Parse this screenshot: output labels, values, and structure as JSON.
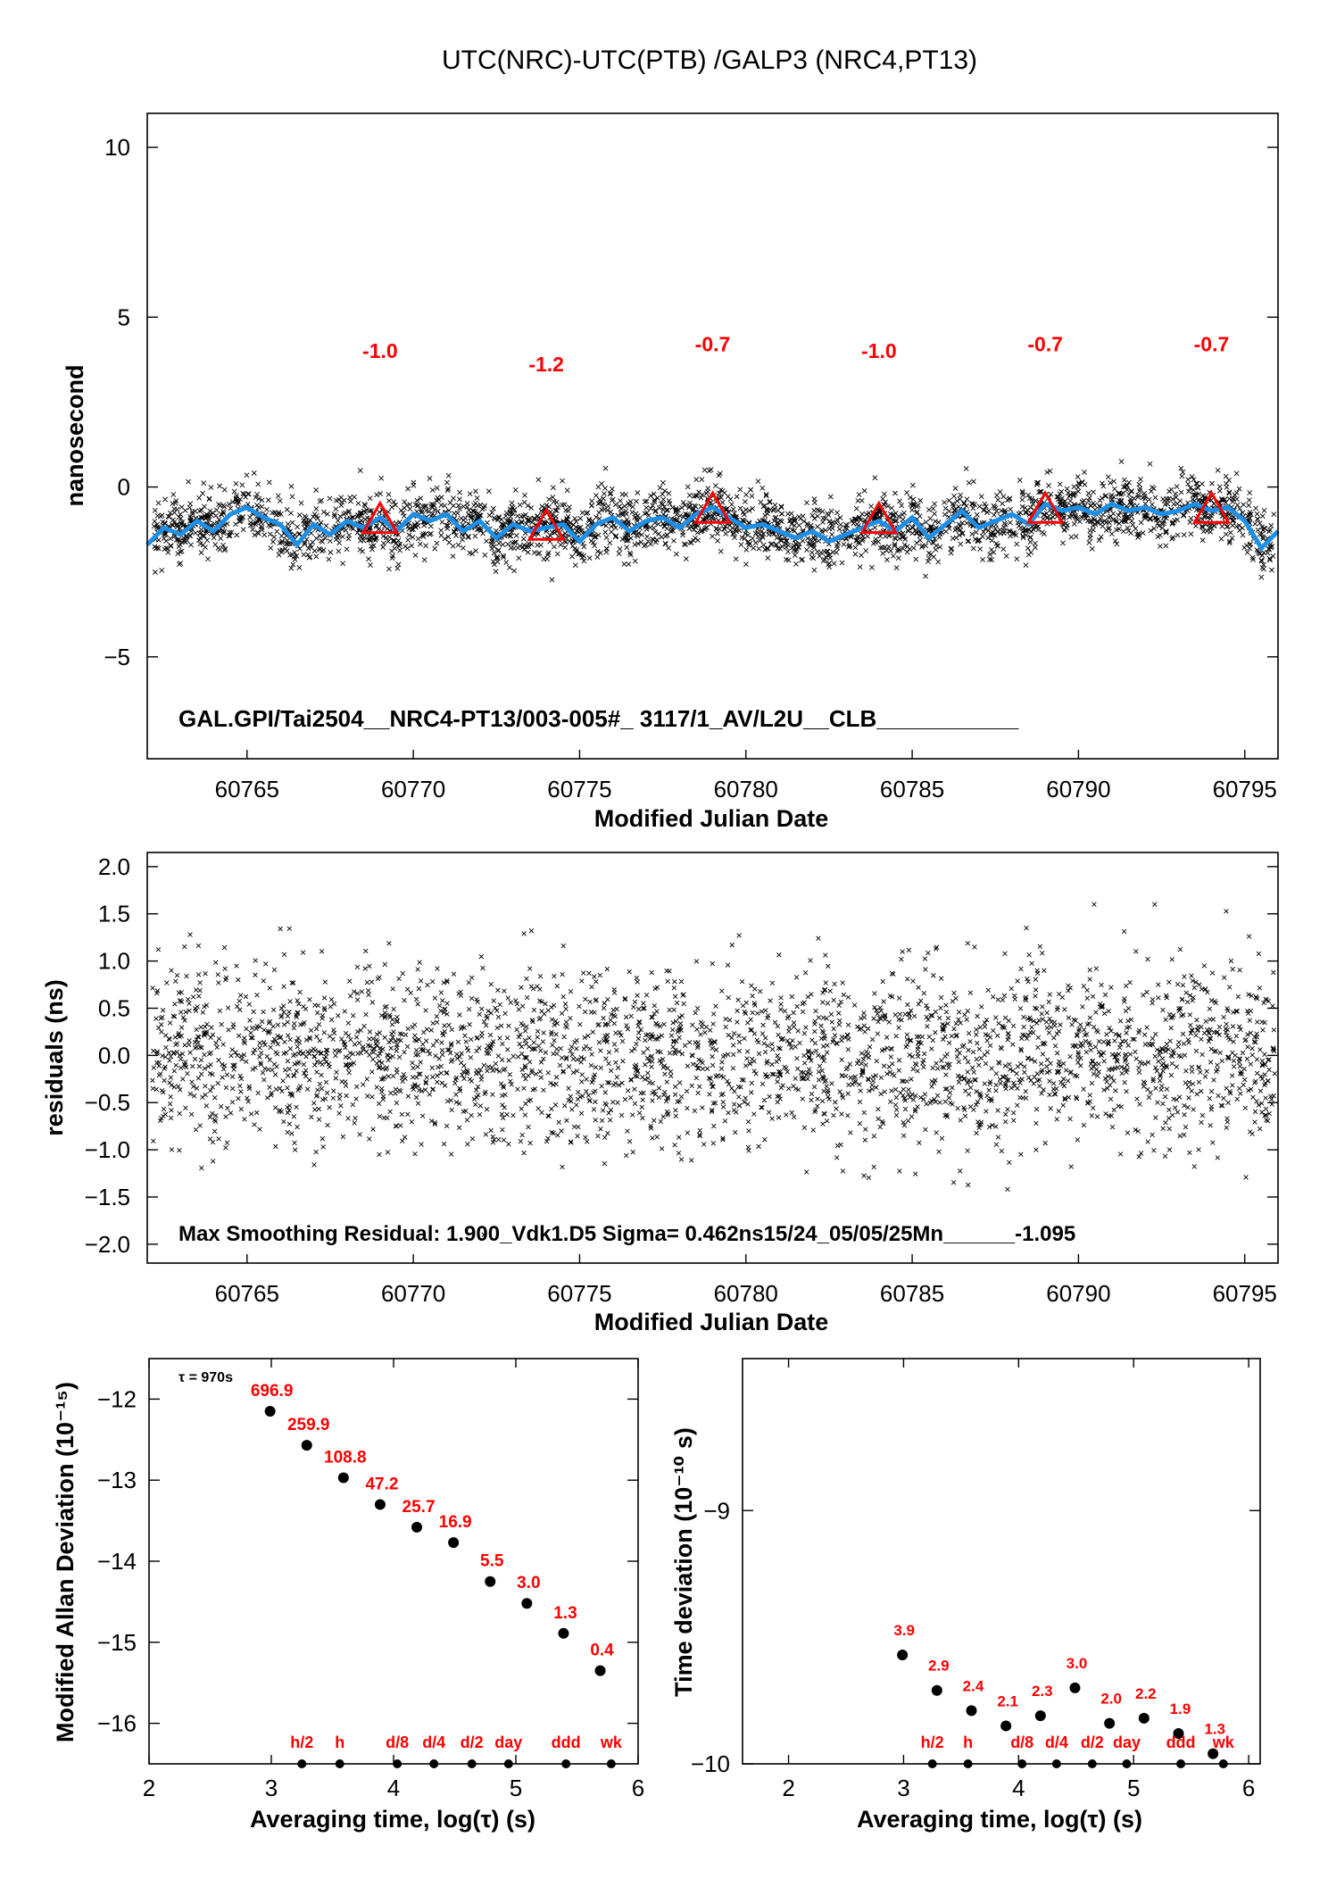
{
  "colors": {
    "scatter": "#000000",
    "smooth": "#1e8fe6",
    "marker": "#ff0000",
    "label": "#ff0000"
  },
  "title": "UTC(NRC)-UTC(PTB)  /GALP3  (NRC4,PT13)",
  "chart_data": [
    {
      "type": "scatter",
      "id": "time-series",
      "xlabel": "Modified Julian Date",
      "ylabel": "nanosecond",
      "xlim": [
        60762.0,
        60796.0
      ],
      "ylim": [
        -8.0,
        11.0
      ],
      "xticks": [
        60765,
        60770,
        60775,
        60780,
        60785,
        60790,
        60795
      ],
      "yticks": [
        10,
        5,
        0,
        -5
      ],
      "ytick_labels": [
        "10",
        "5",
        "0",
        "−5"
      ],
      "annotation": "GAL.GPI/Tai2504__NRC4-PT13/003-005#_  3117/1_AV/L2U__CLB___________",
      "smoothed_curve": {
        "x": [
          60762.0,
          60762.5,
          60763.0,
          60763.5,
          60764.0,
          60764.5,
          60765.0,
          60765.5,
          60766.0,
          60766.5,
          60767.0,
          60767.5,
          60768.0,
          60768.5,
          60769.0,
          60769.5,
          60770.0,
          60770.5,
          60771.0,
          60771.5,
          60772.0,
          60772.5,
          60773.0,
          60773.5,
          60774.0,
          60774.5,
          60775.0,
          60775.5,
          60776.0,
          60776.5,
          60777.0,
          60777.5,
          60778.0,
          60778.5,
          60779.0,
          60779.5,
          60780.0,
          60780.5,
          60781.0,
          60781.5,
          60782.0,
          60782.5,
          60783.0,
          60783.5,
          60784.0,
          60784.5,
          60785.0,
          60785.5,
          60786.0,
          60786.5,
          60787.0,
          60787.5,
          60788.0,
          60788.5,
          60789.0,
          60789.5,
          60790.0,
          60790.5,
          60791.0,
          60791.5,
          60792.0,
          60792.5,
          60793.0,
          60793.5,
          60794.0,
          60794.5,
          60795.0,
          60795.5,
          60796.0
        ],
        "y": [
          -1.7,
          -1.2,
          -1.4,
          -1.0,
          -1.3,
          -0.8,
          -0.6,
          -0.9,
          -1.1,
          -1.7,
          -1.1,
          -1.4,
          -1.0,
          -1.2,
          -0.9,
          -1.3,
          -0.8,
          -1.0,
          -0.8,
          -1.3,
          -1.0,
          -1.5,
          -1.1,
          -1.3,
          -1.2,
          -1.1,
          -1.6,
          -1.1,
          -0.9,
          -1.3,
          -1.0,
          -0.9,
          -1.2,
          -0.8,
          -0.6,
          -0.9,
          -1.2,
          -1.1,
          -1.3,
          -1.5,
          -1.3,
          -1.6,
          -1.4,
          -1.2,
          -1.0,
          -1.3,
          -0.9,
          -1.5,
          -1.1,
          -0.7,
          -1.2,
          -1.0,
          -0.8,
          -1.1,
          -0.5,
          -0.7,
          -0.6,
          -0.8,
          -0.5,
          -0.7,
          -0.6,
          -0.8,
          -0.7,
          -0.5,
          -0.7,
          -0.6,
          -1.0,
          -1.8,
          -1.3
        ]
      },
      "markers": [
        {
          "x": 60769.0,
          "y": -1.0,
          "label": "-1.0"
        },
        {
          "x": 60774.0,
          "y": -1.2,
          "label": "-1.2"
        },
        {
          "x": 60779.0,
          "y": -0.7,
          "label": "-0.7"
        },
        {
          "x": 60784.0,
          "y": -1.0,
          "label": "-1.0"
        },
        {
          "x": 60789.0,
          "y": -0.7,
          "label": "-0.7"
        },
        {
          "x": 60794.0,
          "y": -0.7,
          "label": "-0.7"
        }
      ],
      "marker_label_y": [
        3.8,
        3.4,
        4.0,
        3.8,
        4.0,
        4.0
      ],
      "scatter_noise_sigma": 0.46,
      "scatter_count": 2900
    },
    {
      "type": "scatter",
      "id": "residuals",
      "xlabel": "Modified Julian Date",
      "ylabel": "residuals (ns)",
      "xlim": [
        60762.0,
        60796.0
      ],
      "ylim": [
        -2.2,
        2.15
      ],
      "xticks": [
        60765,
        60770,
        60775,
        60780,
        60785,
        60790,
        60795
      ],
      "yticks": [
        2.0,
        1.5,
        1.0,
        0.5,
        0.0,
        -0.5,
        -1.0,
        -1.5,
        -2.0
      ],
      "ytick_labels": [
        "2.0",
        "1.5",
        "1.0",
        "0.5",
        "0.0",
        "−0.5",
        "−1.0",
        "−1.5",
        "−2.0"
      ],
      "annotation": "Max Smoothing Residual: 1.900_Vdk1.D5  Sigma= 0.462ns15/24_05/05/25Mn______-1.095",
      "sigma": 0.462,
      "max_residual": 1.9,
      "scatter_count": 2900
    },
    {
      "type": "scatter",
      "id": "modified-allan-deviation",
      "xlabel": "Averaging time, log(τ) (s)",
      "ylabel": "Modified Allan Deviation (10⁻¹⁵)",
      "xlim": [
        2,
        6
      ],
      "ylim": [
        -16.5,
        -11.5
      ],
      "xticks": [
        2,
        3,
        4,
        5,
        6
      ],
      "yticks": [
        -12,
        -13,
        -14,
        -15,
        -16
      ],
      "ytick_labels": [
        "−12",
        "−13",
        "−14",
        "−15",
        "−16"
      ],
      "tau_note": "τ = 970s",
      "points": {
        "x": [
          2.99,
          3.29,
          3.59,
          3.89,
          4.19,
          4.49,
          4.79,
          5.09,
          5.39,
          5.69
        ],
        "y": [
          -12.15,
          -12.57,
          -12.97,
          -13.3,
          -13.58,
          -13.77,
          -14.25,
          -14.52,
          -14.89,
          -15.35
        ],
        "labels": [
          "696.9",
          "259.9",
          "108.8",
          "47.2",
          "25.7",
          "16.9",
          "5.5",
          "3.0",
          "1.3",
          "0.4"
        ]
      },
      "time_marks": {
        "x": [
          3.25,
          3.56,
          4.03,
          4.33,
          4.64,
          4.94,
          5.41,
          5.78
        ],
        "labels": [
          "h/2",
          "h",
          "d/8",
          "d/4",
          "d/2",
          "day",
          "ddd",
          "wk"
        ]
      }
    },
    {
      "type": "scatter",
      "id": "time-deviation",
      "xlabel": "Averaging time, log(τ) (s)",
      "ylabel": "Time deviation (10⁻¹⁰ s)",
      "xlim": [
        1.6,
        6.1
      ],
      "ylim": [
        -10.0,
        -8.4
      ],
      "xticks": [
        2,
        3,
        4,
        5,
        6
      ],
      "yticks": [
        -9,
        -10
      ],
      "ytick_labels": [
        "−9",
        "−10"
      ],
      "points": {
        "x": [
          2.99,
          3.29,
          3.59,
          3.89,
          4.19,
          4.49,
          4.79,
          5.09,
          5.39,
          5.69
        ],
        "y": [
          -9.57,
          -9.71,
          -9.79,
          -9.85,
          -9.81,
          -9.7,
          -9.84,
          -9.82,
          -9.88,
          -9.96
        ],
        "labels": [
          "3.9",
          "2.9",
          "2.4",
          "2.1",
          "2.3",
          "3.0",
          "2.0",
          "2.2",
          "1.9",
          "1.3"
        ]
      },
      "time_marks": {
        "x": [
          3.25,
          3.56,
          4.03,
          4.33,
          4.64,
          4.94,
          5.41,
          5.78
        ],
        "labels": [
          "h/2",
          "h",
          "d/8",
          "d/4",
          "d/2",
          "day",
          "ddd",
          "wk"
        ]
      }
    }
  ]
}
